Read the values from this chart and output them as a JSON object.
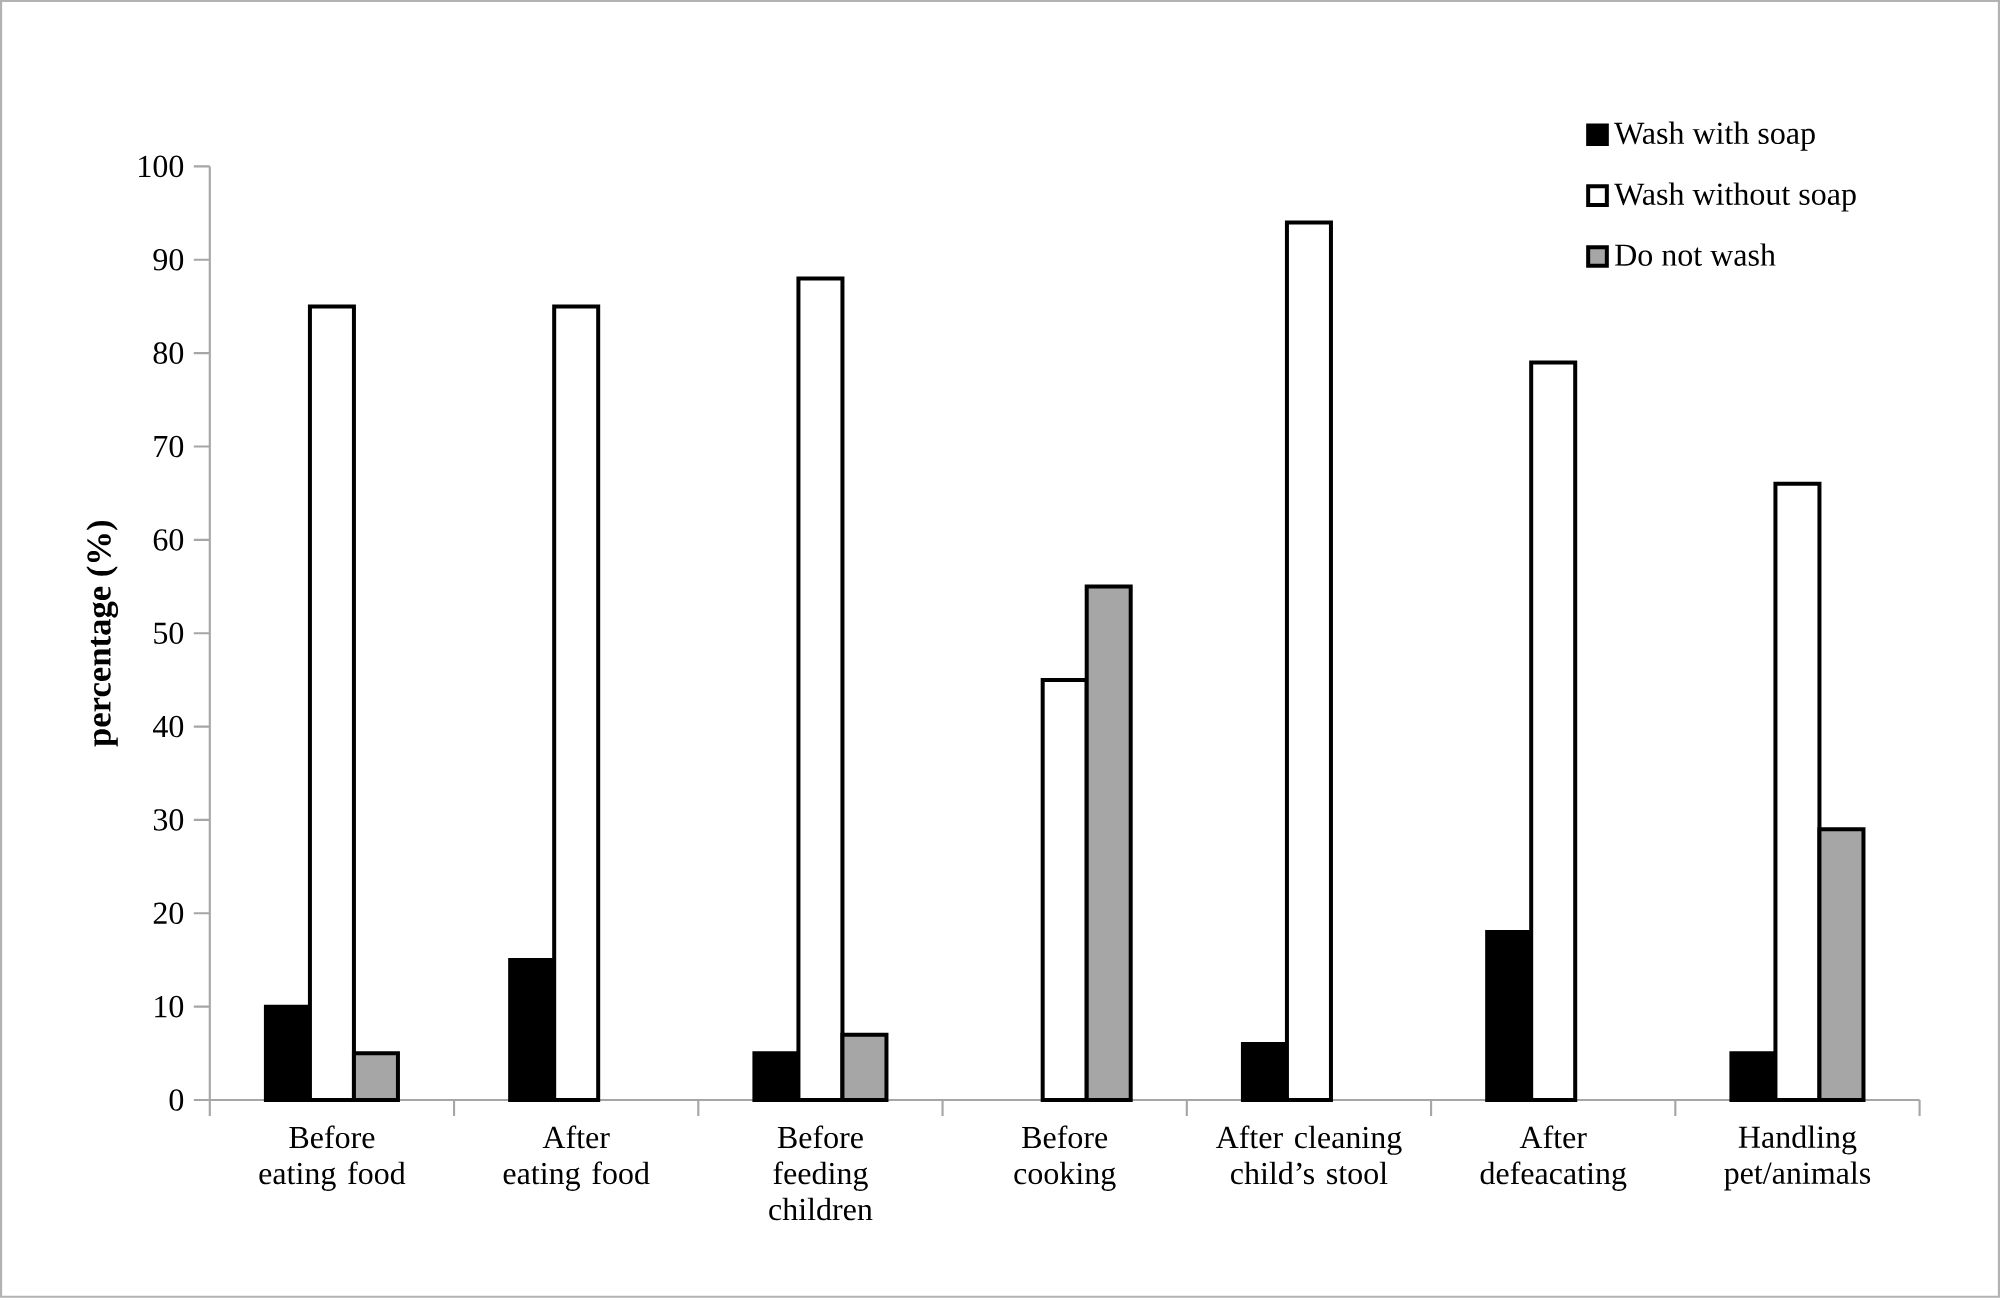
{
  "chart_data": {
    "type": "bar",
    "ylabel": "percentage (%)",
    "categories": [
      "Before eating food",
      "After eating food",
      "Before feeding children",
      "Before cooking",
      "After cleaning child’s stool",
      "After defeacating",
      "Handling pet/animals"
    ],
    "series": [
      {
        "name": "Wash with soap",
        "color": "#000000",
        "values": [
          10,
          15,
          5,
          null,
          6,
          18,
          5
        ]
      },
      {
        "name": "Wash without soap",
        "color": "#ffffff",
        "values": [
          85,
          85,
          88,
          45,
          94,
          79,
          66
        ]
      },
      {
        "name": "Do not wash",
        "color": "#a6a6a6",
        "values": [
          5,
          null,
          7,
          55,
          null,
          null,
          29
        ]
      }
    ],
    "ylim": [
      0,
      100
    ],
    "yticks": [
      0,
      10,
      20,
      30,
      40,
      50,
      60,
      70,
      80,
      90,
      100
    ],
    "grid": false,
    "legend": "top right"
  }
}
